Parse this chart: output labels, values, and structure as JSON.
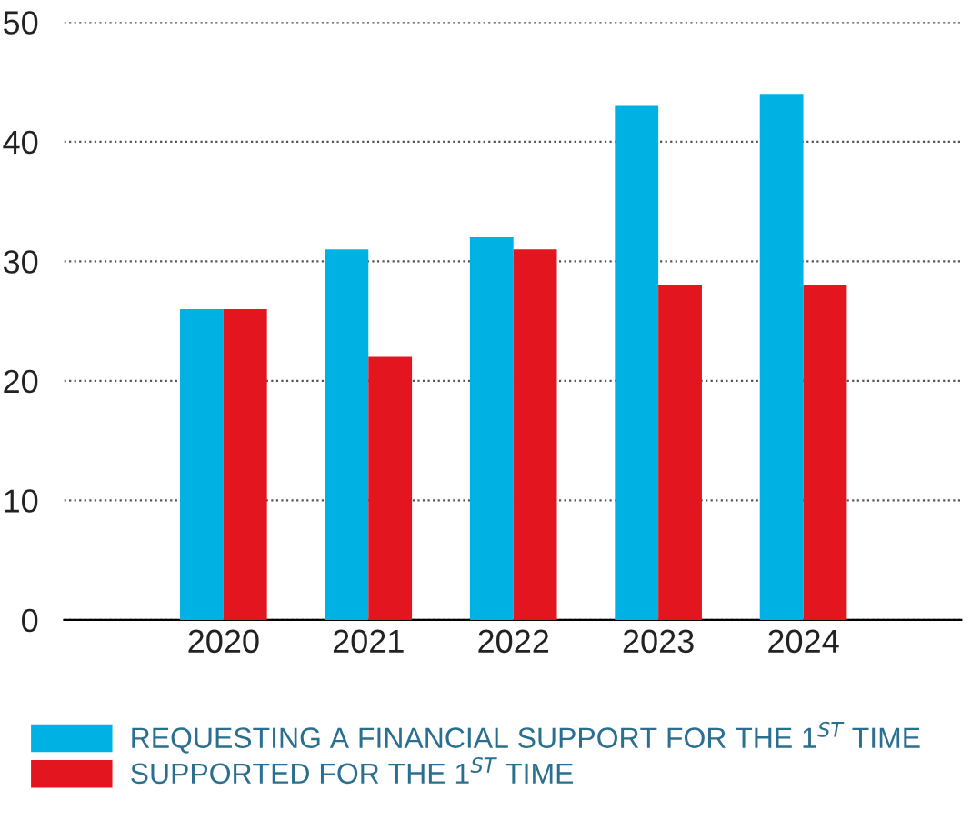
{
  "chart_data": {
    "type": "bar",
    "categories": [
      "2020",
      "2021",
      "2022",
      "2023",
      "2024"
    ],
    "series": [
      {
        "name": "REQUESTING A FINANCIAL SUPPORT FOR THE 1$^{ST}$ TIME",
        "color": "#00b2e3",
        "values": [
          26,
          31,
          32,
          43,
          44
        ]
      },
      {
        "name": "SUPPORTED FOR THE 1$^{ST}$ TIME",
        "color": "#e3151f",
        "values": [
          26,
          22,
          31,
          28,
          28
        ]
      }
    ],
    "ylim": [
      0,
      50
    ],
    "yticks": [
      0,
      10,
      20,
      30,
      40,
      50
    ],
    "grid": "y",
    "legend": "bottom left"
  }
}
